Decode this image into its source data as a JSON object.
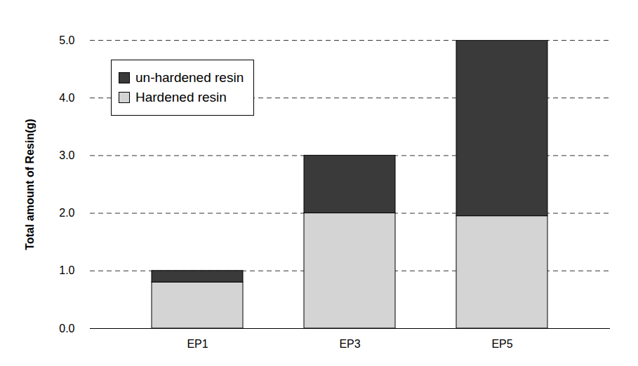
{
  "chart_data": {
    "type": "bar",
    "stacked": true,
    "y_label": "Total amount of Resin(g)",
    "categories": [
      "EP1",
      "EP3",
      "EP5"
    ],
    "series": [
      {
        "name": "un-hardened resin",
        "color": "#3a3a3a",
        "values": [
          0.2,
          1.0,
          3.05
        ]
      },
      {
        "name": "Hardened resin",
        "color": "#d4d4d4",
        "values": [
          0.8,
          2.0,
          1.95
        ]
      }
    ],
    "ylim": [
      0,
      5
    ],
    "yticks": [
      0,
      1,
      2,
      3,
      4,
      5
    ],
    "grid": true,
    "legend": "top-left"
  }
}
